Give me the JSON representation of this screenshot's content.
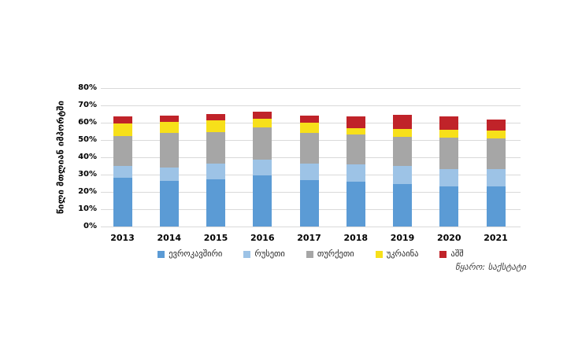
{
  "source": "წყარო: საქსტატი",
  "colors": {
    "grid": "#D9D9D9",
    "eu_blue": "#5B9BD5",
    "russia_light_blue": "#9DC3E6",
    "turkey_gray": "#A6A6A6",
    "ukraine_yellow": "#F7E01A",
    "usa_red": "#C02329"
  },
  "chart_data": {
    "type": "bar",
    "stacked": true,
    "title": "",
    "xlabel": "",
    "ylabel": "წილი მთლიან იმპორტში",
    "ylim": [
      0,
      80
    ],
    "ytick_step": 10,
    "ytick_suffix": "%",
    "grid": true,
    "legend_position": "bottom",
    "categories": [
      "2013",
      "2014",
      "2015",
      "2016",
      "2017",
      "2018",
      "2019",
      "2020",
      "2021"
    ],
    "series": [
      {
        "name": "ევროკავშირი",
        "color": "#5B9BD5",
        "values": [
          28,
          26.5,
          27.5,
          29.5,
          27,
          26,
          24.5,
          23,
          23
        ]
      },
      {
        "name": "რუსეთი",
        "color": "#9DC3E6",
        "values": [
          7,
          7.5,
          9,
          9,
          9.5,
          10,
          10.5,
          10,
          10
        ]
      },
      {
        "name": "თურქეთი",
        "color": "#A6A6A6",
        "values": [
          17.5,
          20,
          18,
          19,
          17.5,
          17,
          17,
          18.5,
          18
        ]
      },
      {
        "name": "უკრაინა",
        "color": "#F7E01A",
        "values": [
          7,
          6.5,
          7,
          5,
          6,
          4,
          4.5,
          4.5,
          4.5
        ]
      },
      {
        "name": "აშშ",
        "color": "#C02329",
        "values": [
          4,
          3.5,
          3.5,
          4,
          4,
          6.5,
          8,
          7.5,
          6.5
        ]
      }
    ]
  }
}
